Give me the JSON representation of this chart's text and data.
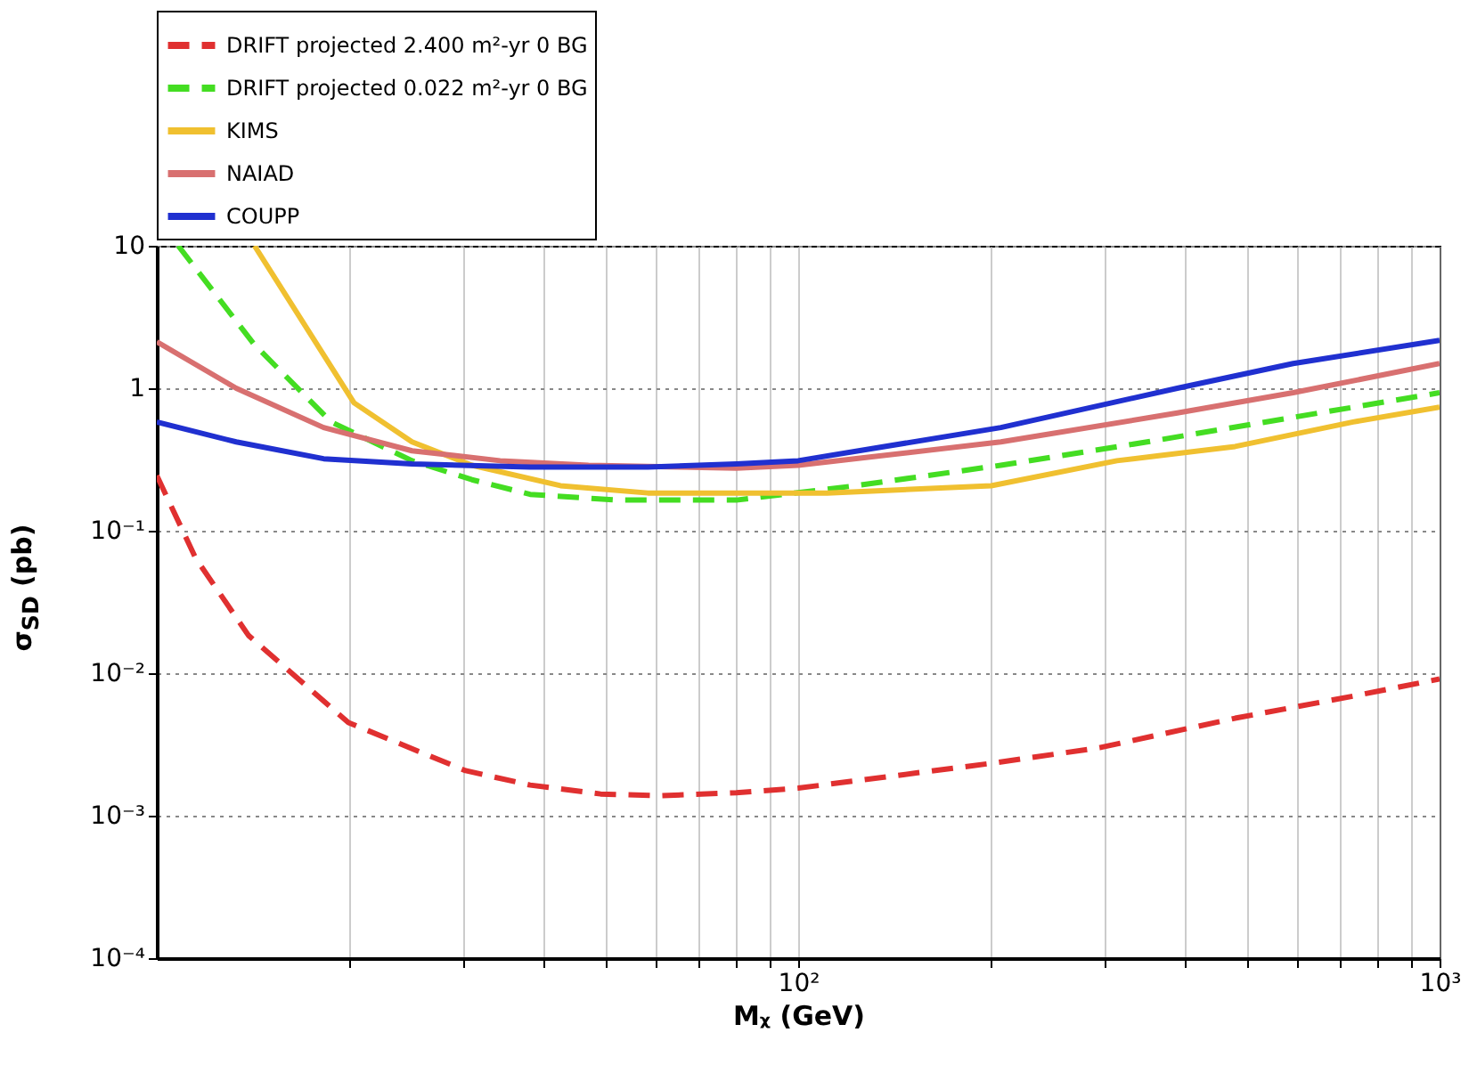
{
  "chart_data": {
    "type": "line",
    "xlabel": "Mᵪ (GeV)",
    "ylabel": "σ$_{SD}$ (pb)",
    "log": "xy",
    "grid": true,
    "legend": "top",
    "xlim": [
      10,
      1000
    ],
    "xticks": [
      {
        "value": 20,
        "label": null
      },
      {
        "value": 30,
        "label": null
      },
      {
        "value": 40,
        "label": null
      },
      {
        "value": 50,
        "label": null
      },
      {
        "value": 60,
        "label": null
      },
      {
        "value": 70,
        "label": null
      },
      {
        "value": 80,
        "label": null
      },
      {
        "value": 90,
        "label": null
      },
      {
        "value": 100,
        "label": "10²"
      },
      {
        "value": 200,
        "label": null
      },
      {
        "value": 300,
        "label": null
      },
      {
        "value": 400,
        "label": null
      },
      {
        "value": 500,
        "label": null
      },
      {
        "value": 600,
        "label": null
      },
      {
        "value": 700,
        "label": null
      },
      {
        "value": 800,
        "label": null
      },
      {
        "value": 900,
        "label": null
      },
      {
        "value": 1000,
        "label": "10³"
      }
    ],
    "ylim": [
      0.0001,
      10
    ],
    "yticks": [
      {
        "value": 0.0001,
        "label": "10⁻⁴"
      },
      {
        "value": 0.001,
        "label": "10⁻³"
      },
      {
        "value": 0.01,
        "label": "10⁻²"
      },
      {
        "value": 0.1,
        "label": "10⁻¹"
      },
      1,
      10
    ],
    "series": [
      {
        "name": "DRIFT projected 2.400 m²-yr 0 BG",
        "color": "#e03030",
        "line_style": "dashed",
        "x": [
          10,
          11.5,
          13.9,
          19.9,
          30.3,
          38.2,
          49.2,
          60.7,
          80.1,
          100,
          200,
          295,
          480,
          733,
          1000
        ],
        "values": [
          0.244,
          0.064,
          0.0184,
          0.0045,
          0.00207,
          0.00164,
          0.00142,
          0.00138,
          0.00145,
          0.00156,
          0.00233,
          0.003,
          0.00483,
          0.0069,
          0.0091
        ]
      },
      {
        "name": "DRIFT projected 0.022 m²-yr 0 BG",
        "color": "#44dd22",
        "line_style": "dashed",
        "x": [
          10.8,
          14.2,
          18.7,
          25,
          31,
          38.2,
          52.5,
          80.1,
          123,
          207,
          350,
          591,
          1000
        ],
        "values": [
          10,
          2.02,
          0.58,
          0.31,
          0.228,
          0.18,
          0.164,
          0.164,
          0.207,
          0.288,
          0.42,
          0.625,
          0.93
        ]
      },
      {
        "name": "KIMS",
        "color": "#f0c030",
        "line_style": "solid",
        "x": [
          14.2,
          20.3,
          25,
          31,
          42.6,
          58.3,
          80.1,
          111,
          200,
          314,
          480,
          733,
          1000
        ],
        "values": [
          10,
          0.79,
          0.42,
          0.288,
          0.207,
          0.184,
          0.184,
          0.184,
          0.207,
          0.31,
          0.39,
          0.58,
          0.736
        ]
      },
      {
        "name": "NAIAD",
        "color": "#d87070",
        "line_style": "solid",
        "x": [
          10,
          13.3,
          18.2,
          25,
          34.3,
          47.1,
          80.1,
          100,
          207,
          390,
          591,
          1000
        ],
        "values": [
          2.12,
          1.0,
          0.53,
          0.364,
          0.31,
          0.288,
          0.275,
          0.288,
          0.42,
          0.67,
          0.93,
          1.49
        ]
      },
      {
        "name": "COUPP",
        "color": "#2030d0",
        "line_style": "solid",
        "x": [
          10,
          13.3,
          18.2,
          25,
          38.2,
          58.3,
          80.1,
          100,
          207,
          390,
          591,
          1000
        ],
        "values": [
          0.58,
          0.42,
          0.32,
          0.294,
          0.28,
          0.28,
          0.294,
          0.31,
          0.53,
          1.0,
          1.49,
          2.17
        ]
      }
    ]
  }
}
